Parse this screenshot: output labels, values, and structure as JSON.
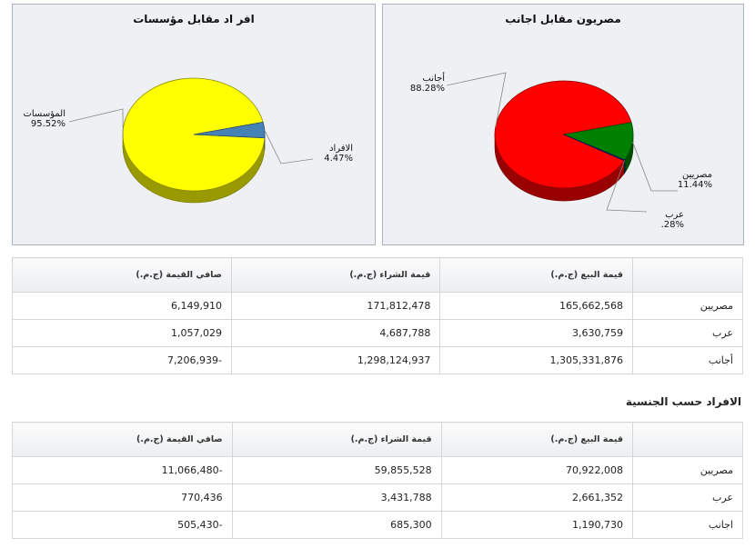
{
  "chart_data": [
    {
      "type": "pie",
      "title": "مصريون مقابل اجانب",
      "slices": [
        {
          "label": "أجانب",
          "value": 88.28,
          "value_label": "88.28%",
          "color": "#ff0000"
        },
        {
          "label": "مصريين",
          "value": 11.44,
          "value_label": "11.44%",
          "color": "#008000"
        },
        {
          "label": "عرب",
          "value": 0.28,
          "value_label": ".28%",
          "color": "#0a2a8a"
        }
      ]
    },
    {
      "type": "pie",
      "title": "افر اد مقابل مؤسسات",
      "slices": [
        {
          "label": "المؤسسات",
          "value": 95.52,
          "value_label": "95.52%",
          "color": "#ffff00"
        },
        {
          "label": "الافراد",
          "value": 4.47,
          "value_label": "4.47%",
          "color": "#4682b4"
        }
      ]
    }
  ],
  "table1": {
    "headers": [
      "صافي القيمة (ج.م.)",
      "قيمة الشراء (ج.م.)",
      "قيمة البيع (ج.م.)",
      ""
    ],
    "rows": [
      {
        "label": "مصريين",
        "net": "6,149,910",
        "buy": "171,812,478",
        "sell": "165,662,568"
      },
      {
        "label": "عرب",
        "net": "1,057,029",
        "buy": "4,687,788",
        "sell": "3,630,759"
      },
      {
        "label": "أجانب",
        "net": "7,206,939-",
        "buy": "1,298,124,937",
        "sell": "1,305,331,876"
      }
    ]
  },
  "section2_title": "الافراد حسب الجنسية",
  "table2": {
    "headers": [
      "صافي القيمة (ج.م.)",
      "قيمة الشراء (ج.م.)",
      "قيمة البيع (ج.م.)",
      ""
    ],
    "rows": [
      {
        "label": "مصريين",
        "net": "11,066,480-",
        "buy": "59,855,528",
        "sell": "70,922,008"
      },
      {
        "label": "عرب",
        "net": "770,436",
        "buy": "3,431,788",
        "sell": "2,661,352"
      },
      {
        "label": "اجانب",
        "net": "505,430-",
        "buy": "685,300",
        "sell": "1,190,730"
      }
    ]
  }
}
